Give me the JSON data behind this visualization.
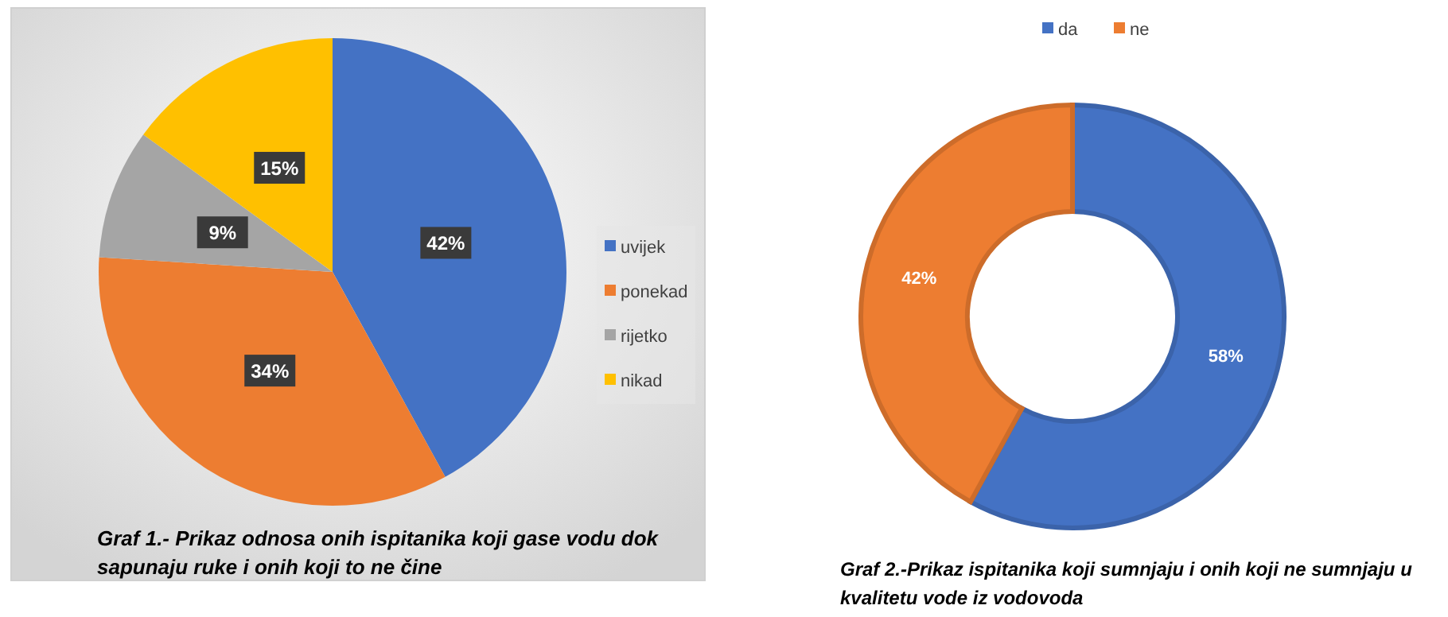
{
  "chart_data": [
    {
      "type": "pie",
      "categories": [
        "uvijek",
        "ponekad",
        "rijetko",
        "nikad"
      ],
      "values": [
        42,
        34,
        9,
        15
      ],
      "colors": [
        "#4472c4",
        "#ed7d31",
        "#a5a5a5",
        "#ffc000"
      ],
      "value_labels": [
        "42%",
        "34%",
        "9%",
        "15%"
      ],
      "legend": "right",
      "annotations": [
        "Graf 1.- Prikaz odnosa onih ispitanika koji gase vodu dok sapunaju ruke i onih koji to ne čine"
      ]
    },
    {
      "type": "donut",
      "categories": [
        "da",
        "ne"
      ],
      "values": [
        58,
        42
      ],
      "colors": [
        "#4472c4",
        "#ed7d31"
      ],
      "value_labels": [
        "58%",
        "42%"
      ],
      "legend": "top",
      "annotations": [
        "Graf 2.-Prikaz ispitanika koji sumnjaju i onih koji ne sumnjaju u kvalitetu vode iz vodovoda"
      ]
    }
  ]
}
